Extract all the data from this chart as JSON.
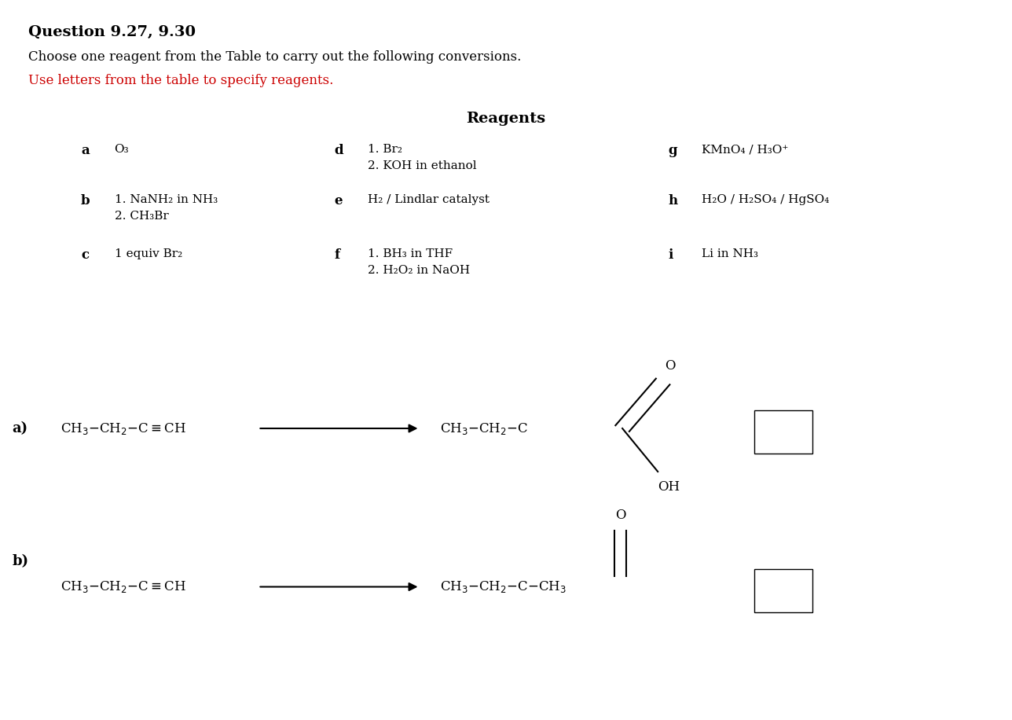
{
  "title": "Question 9.27, 9.30",
  "subtitle_black": "Choose one reagent from the Table to carry out the following conversions.",
  "subtitle_red": "Use letters from the table to specify reagents.",
  "reagents_title": "Reagents",
  "background_color": "#ffffff",
  "text_color": "#000000",
  "red_color": "#cc0000",
  "reagent_rows": [
    {
      "a_label": "a",
      "a_text": "O₃",
      "d_label": "d",
      "d_text": "1. Br₂\n2. KOH in ethanol",
      "g_label": "g",
      "g_text": "KMnO₄ / H₃O⁺"
    },
    {
      "a_label": "b",
      "a_text": "1. NaNH₂ in NH₃\n2. CH₃Br",
      "d_label": "e",
      "d_text": "H₂ / Lindlar catalyst",
      "g_label": "h",
      "g_text": "H₂O / H₂SO₄ / HgSO₄"
    },
    {
      "a_label": "c",
      "a_text": "1 equiv Br₂",
      "d_label": "f",
      "d_text": "1. BH₃ in THF\n2. H₂O₂ in NaOH",
      "g_label": "i",
      "g_text": "Li in NH₃"
    }
  ]
}
